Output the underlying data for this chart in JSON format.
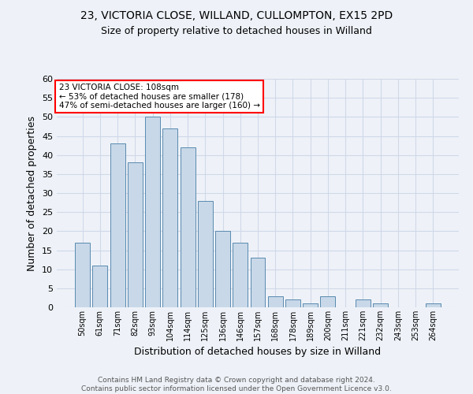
{
  "title1": "23, VICTORIA CLOSE, WILLAND, CULLOMPTON, EX15 2PD",
  "title2": "Size of property relative to detached houses in Willand",
  "xlabel": "Distribution of detached houses by size in Willand",
  "ylabel": "Number of detached properties",
  "categories": [
    "50sqm",
    "61sqm",
    "71sqm",
    "82sqm",
    "93sqm",
    "104sqm",
    "114sqm",
    "125sqm",
    "136sqm",
    "146sqm",
    "157sqm",
    "168sqm",
    "178sqm",
    "189sqm",
    "200sqm",
    "211sqm",
    "221sqm",
    "232sqm",
    "243sqm",
    "253sqm",
    "264sqm"
  ],
  "values": [
    17,
    11,
    43,
    38,
    50,
    47,
    42,
    28,
    20,
    17,
    13,
    3,
    2,
    1,
    3,
    0,
    2,
    1,
    0,
    0,
    1
  ],
  "bar_color": "#c8d8e8",
  "bar_edge_color": "#5a8ab0",
  "annotation_box_text": "23 VICTORIA CLOSE: 108sqm\n← 53% of detached houses are smaller (178)\n47% of semi-detached houses are larger (160) →",
  "annotation_box_color": "white",
  "annotation_box_edge_color": "red",
  "ylim": [
    0,
    60
  ],
  "yticks": [
    0,
    5,
    10,
    15,
    20,
    25,
    30,
    35,
    40,
    45,
    50,
    55,
    60
  ],
  "grid_color": "#d0d8e8",
  "background_color": "#eef2f8",
  "footer": "Contains HM Land Registry data © Crown copyright and database right 2024.\nContains public sector information licensed under the Open Government Licence v3.0.",
  "title1_fontsize": 10,
  "title2_fontsize": 9,
  "xlabel_fontsize": 9,
  "ylabel_fontsize": 9,
  "footer_fontsize": 6.5
}
